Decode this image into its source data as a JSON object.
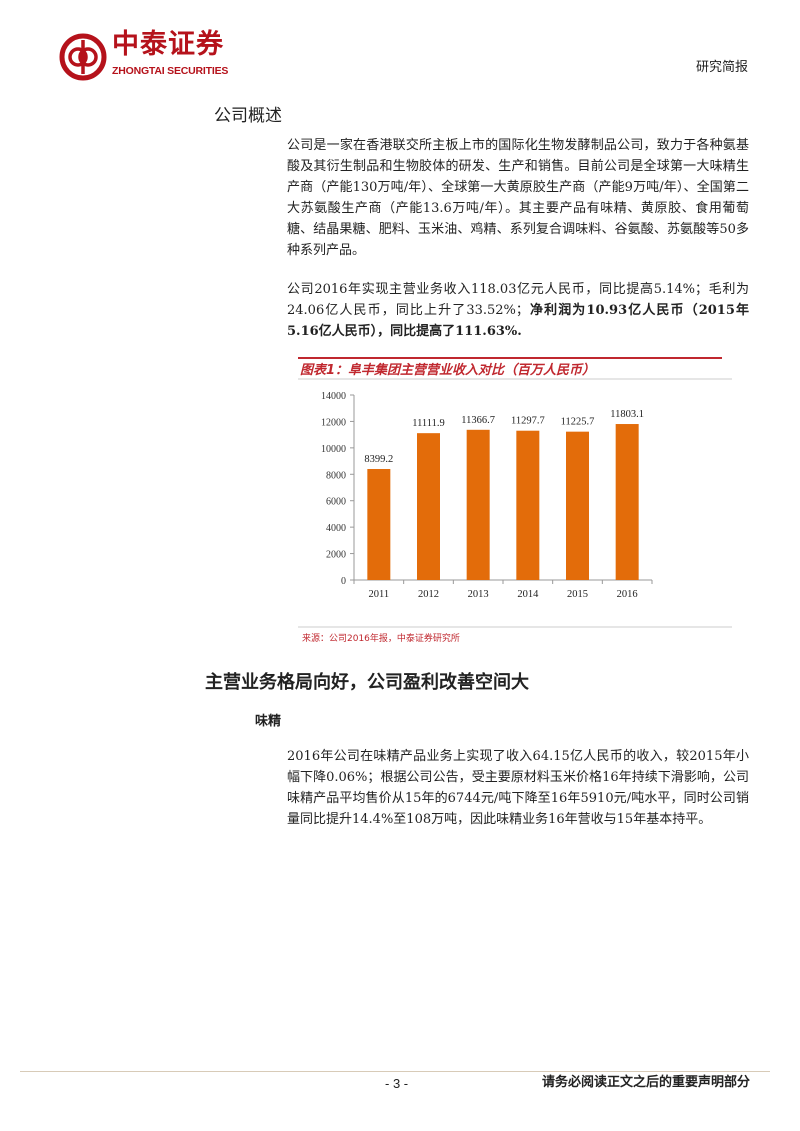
{
  "header": {
    "logo_cn": "中泰证券",
    "logo_en": "ZHONGTAI SECURITIES",
    "doc_type": "研究简报",
    "brand_color": "#b5121b"
  },
  "section1": {
    "title": "公司概述",
    "para1": "公司是一家在香港联交所主板上市的国际化生物发酵制品公司，致力于各种氨基酸及其衍生制品和生物胶体的研发、生产和销售。目前公司是全球第一大味精生产商（产能130万吨/年）、全球第一大黄原胶生产商（产能9万吨/年）、全国第二大苏氨酸生产商（产能13.6万吨/年）。其主要产品有味精、黄原胶、食用葡萄糖、结晶果糖、肥料、玉米油、鸡精、系列复合调味料、谷氨酸、苏氨酸等50多种系列产品。",
    "para2_normal": "公司2016年实现主营业务收入118.03亿元人民币，同比提高5.14%；毛利为24.06亿人民币，同比上升了33.52%；",
    "para2_bold": "净利润为10.93亿人民币（2015年5.16亿人民币），同比提高了111.63%."
  },
  "chart_data": {
    "type": "bar",
    "title": "图表1：阜丰集团主营营业收入对比（百万人民币）",
    "categories": [
      "2011",
      "2012",
      "2013",
      "2014",
      "2015",
      "2016"
    ],
    "values": [
      8399.2,
      11111.9,
      11366.7,
      11297.7,
      11225.7,
      11803.1
    ],
    "data_labels": [
      "8399.2",
      "11111.9",
      "11366.7",
      "11297.7",
      "11225.7",
      "11803.1"
    ],
    "ylim": [
      0,
      14000
    ],
    "yticks": [
      "0",
      "2000",
      "4000",
      "6000",
      "8000",
      "10000",
      "12000",
      "14000"
    ],
    "grid": false,
    "bar_color": "#e36c0a",
    "title_color": "#c0282f",
    "source": "来源：公司2016年报，中泰证券研究所"
  },
  "section2": {
    "title": "主营业务格局向好，公司盈利改善空间大",
    "subtitle": "味精",
    "para": "2016年公司在味精产品业务上实现了收入64.15亿人民币的收入，较2015年小幅下降0.06%；根据公司公告，受主要原材料玉米价格16年持续下滑影响，公司味精产品平均售价从15年的6744元/吨下降至16年5910元/吨水平，同时公司销量同比提升14.4%至108万吨，因此味精业务16年营收与15年基本持平。"
  },
  "footer": {
    "page": "- 3 -",
    "disclaimer": "请务必阅读正文之后的重要声明部分"
  }
}
